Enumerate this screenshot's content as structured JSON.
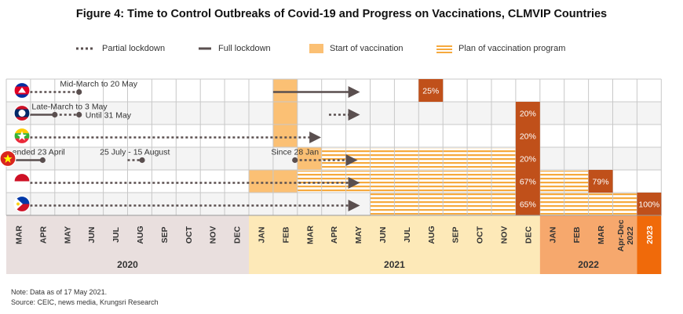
{
  "title": "Figure 4: Time to Control Outbreaks of Covid-19 and Progress on Vaccinations, CLMVIP Countries",
  "legend": {
    "partial_lockdown": "Partial lockdown",
    "full_lockdown": "Full lockdown",
    "start_vaccination": "Start of vaccination",
    "plan_vaccination": "Plan of vaccination program"
  },
  "colors": {
    "grid_line": "#c8c8c8",
    "row_band": "#f4f4f4",
    "lockdown": "#5a4f4f",
    "start_vaccination": "#fbc074",
    "plan_vaccination": "#f6a93d",
    "label_box": "#c0501a",
    "year_2020": "#e9dfde",
    "year_2021": "#fde9b8",
    "year_2022": "#f6a86d",
    "year_2023": "#f06a0a"
  },
  "chart_data": {
    "type": "table",
    "columns": [
      "MAR",
      "APR",
      "MAY",
      "JUN",
      "JUL",
      "AUG",
      "SEP",
      "OCT",
      "NOV",
      "DEC",
      "JAN",
      "FEB",
      "MAR",
      "APR",
      "MAY",
      "JUN",
      "JUL",
      "AUG",
      "SEP",
      "OCT",
      "NOV",
      "DEC",
      "JAN",
      "FEB",
      "MAR",
      "Apr-Dec 2022",
      "2023"
    ],
    "years": [
      {
        "label": "2020",
        "from": 0,
        "to": 9,
        "color": "#e9dfde"
      },
      {
        "label": "2021",
        "from": 10,
        "to": 21,
        "color": "#fde9b8"
      },
      {
        "label": "2022",
        "from": 22,
        "to": 25,
        "color": "#f6a86d"
      },
      {
        "label": "",
        "from": 26,
        "to": 26,
        "color": "#f06a0a"
      }
    ],
    "countries": [
      {
        "flag": "cambodia-flag",
        "segments": [
          {
            "kind": "partial",
            "from": 0.4,
            "to": 3.0,
            "label": "Mid-March to 20 May",
            "arrow": false,
            "end_dot": true
          },
          {
            "kind": "full",
            "from": 11.0,
            "to": 14.5,
            "arrow": true
          }
        ],
        "start_vaccination": [
          {
            "from": 11,
            "to": 12
          }
        ],
        "plan": [],
        "boxes": [
          {
            "col": 17,
            "text": "25%"
          }
        ]
      },
      {
        "flag": "laos-flag",
        "segments": [
          {
            "kind": "full",
            "from": 0.4,
            "to": 2.0,
            "label": "Late-March to 3 May",
            "arrow": false,
            "end_dot": true
          },
          {
            "kind": "partial",
            "from": 2.0,
            "to": 3.0,
            "label": "Until 31 May",
            "arrow": false,
            "end_dot": true
          },
          {
            "kind": "partial",
            "from": 13.3,
            "to": 14.5,
            "arrow": true
          }
        ],
        "start_vaccination": [
          {
            "from": 11,
            "to": 12
          }
        ],
        "plan": [],
        "boxes": [
          {
            "col": 21,
            "text": "20%"
          }
        ]
      },
      {
        "flag": "myanmar-flag",
        "segments": [
          {
            "kind": "partial",
            "from": 0.4,
            "to": 12.9,
            "arrow": true
          }
        ],
        "start_vaccination": [
          {
            "from": 11,
            "to": 12
          }
        ],
        "plan": [],
        "boxes": [
          {
            "col": 21,
            "text": "20%"
          }
        ]
      },
      {
        "flag": "vietnam-flag",
        "segments": [
          {
            "kind": "full",
            "from": -0.4,
            "to": 1.5,
            "label": "ended 23 April",
            "arrow": false,
            "end_dot": true
          },
          {
            "kind": "partial",
            "from": 5.0,
            "to": 5.6,
            "label": "25 July - 15 August",
            "arrow": false,
            "end_dot": true
          },
          {
            "kind": "partial",
            "from": 11.9,
            "to": 14.4,
            "label": "Since 28 Jan",
            "arrow": true,
            "start_dot": true
          }
        ],
        "start_vaccination": [
          {
            "from": 12,
            "to": 13
          }
        ],
        "plan": [
          {
            "from": 13,
            "to": 21
          }
        ],
        "boxes": [
          {
            "col": 21,
            "text": "20%"
          }
        ]
      },
      {
        "flag": "indonesia-flag",
        "segments": [
          {
            "kind": "partial",
            "from": 0.4,
            "to": 14.5,
            "arrow": true
          }
        ],
        "start_vaccination": [
          {
            "from": 10,
            "to": 12
          }
        ],
        "plan": [
          {
            "from": 12,
            "to": 21
          },
          {
            "from": 22,
            "to": 24
          }
        ],
        "boxes": [
          {
            "col": 21,
            "text": "67%"
          },
          {
            "col": 24,
            "text": "79%"
          }
        ]
      },
      {
        "flag": "philippines-flag",
        "segments": [
          {
            "kind": "partial",
            "from": 0.4,
            "to": 14.5,
            "arrow": true
          }
        ],
        "start_vaccination": [],
        "plan": [
          {
            "from": 15,
            "to": 21
          },
          {
            "from": 22,
            "to": 26
          }
        ],
        "boxes": [
          {
            "col": 21,
            "text": "65%"
          },
          {
            "col": 26,
            "text": "100%"
          }
        ]
      }
    ]
  },
  "notes": {
    "line1": "Note: Data as of 17 May 2021.",
    "line2": "Source: CEIC, news media, Krungsri Research"
  }
}
